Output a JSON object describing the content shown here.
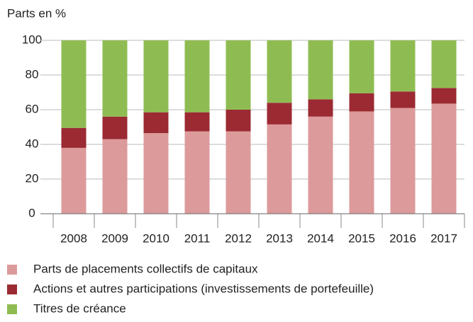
{
  "chart_data": {
    "type": "stacked_bar",
    "ylabel": "Parts en %",
    "categories": [
      "2008",
      "2009",
      "2010",
      "2011",
      "2012",
      "2013",
      "2014",
      "2015",
      "2016",
      "2017"
    ],
    "series": [
      {
        "name": "Parts de placements collectifs de capitaux",
        "color": "#dd9a9b",
        "values": [
          38,
          43,
          46.5,
          47.5,
          47.5,
          51.5,
          56,
          59,
          61,
          63.5
        ]
      },
      {
        "name": "Actions et autres participations (investissements de portefeuille)",
        "color": "#9b2a33",
        "values": [
          11.5,
          13,
          12,
          11,
          12.5,
          12.5,
          10,
          10.5,
          9.5,
          9
        ]
      },
      {
        "name": "Titres de créance",
        "color": "#8fbc52",
        "values": [
          50.5,
          44,
          41.5,
          41.5,
          40,
          36,
          34,
          30.5,
          29.5,
          27.5
        ]
      }
    ],
    "ylim": [
      0,
      100
    ],
    "yticks": [
      0,
      20,
      40,
      60,
      80,
      100
    ],
    "grid": true
  }
}
